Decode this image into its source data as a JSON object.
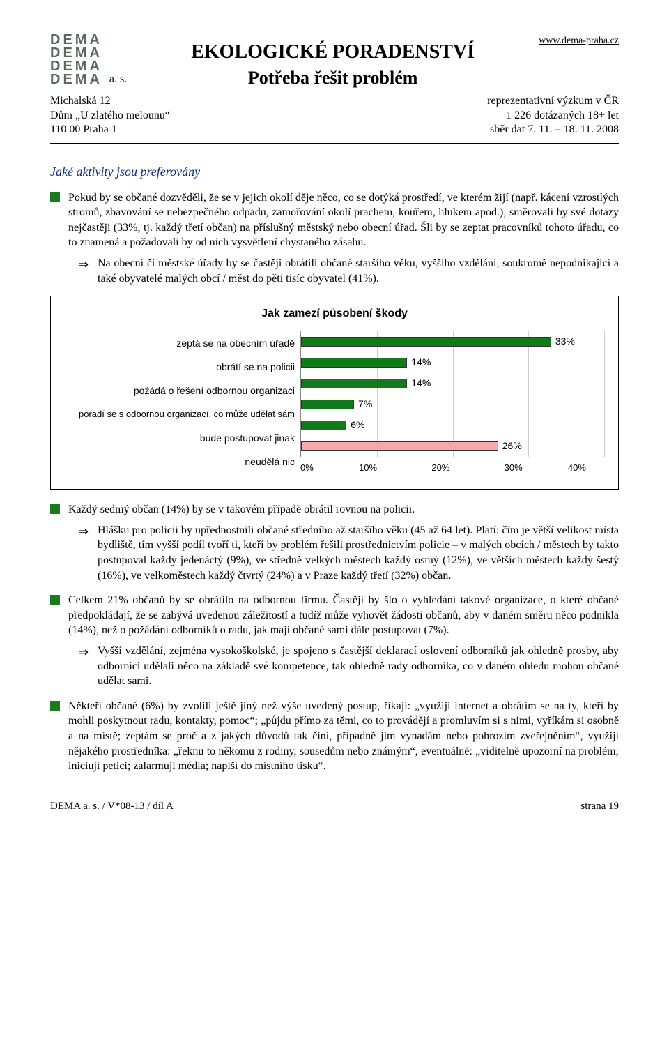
{
  "header": {
    "logo_word": "DEMA",
    "logo_repeat": 4,
    "logo_suffix": "a. s.",
    "title1": "EKOLOGICKÉ PORADENSTVÍ",
    "title2": "Potřeba řešit problém",
    "url": "www.dema-praha.cz",
    "addr_left": [
      "Michalská 12",
      "Dům „U zlatého melounu“",
      "110 00  Praha 1"
    ],
    "addr_right": [
      "reprezentativní výzkum v ČR",
      "1 226 dotázaných 18+ let",
      "sběr dat 7. 11. – 18. 11. 2008"
    ]
  },
  "section_heading": "Jaké aktivity jsou preferovány",
  "para1": "Pokud by se občané dozvěděli, že se v jejich okolí děje něco, co se dotýká prostředí, ve kterém žijí (např. kácení vzrostlých stromů, zbavování se nebezpečného odpadu, zamořování okolí prachem, kouřem, hlukem apod.), směrovali by své dotazy nejčastěji (33%, tj. každý třetí občan) na příslušný městský nebo obecní úřad. Šli by se zeptat pracovníků tohoto úřadu, co to znamená a požadovali by od nich vysvětlení chystaného zásahu.",
  "arrow1": "Na obecní či městské úřady by se častěji obrátili občané staršího věku, vyššího vzdělání, soukromě nepodnikající a také obyvatelé malých obcí / měst do pěti tisíc obyvatel (41%).",
  "chart": {
    "type": "bar-horizontal",
    "title": "Jak zamezí působení škody",
    "x_max": 40,
    "x_ticks": [
      0,
      10,
      20,
      30,
      40
    ],
    "x_tick_labels": [
      "0%",
      "10%",
      "20%",
      "30%",
      "40%"
    ],
    "label_fontsize": 14,
    "title_fontsize": 16,
    "bars": [
      {
        "label": "zeptá se na obecním úřadě",
        "value": 33,
        "value_label": "33%",
        "color": "#137a1a",
        "label_wrap": false
      },
      {
        "label": "obrátí se na policii",
        "value": 14,
        "value_label": "14%",
        "color": "#137a1a",
        "label_wrap": false
      },
      {
        "label": "požádá o řešení odbornou organizaci",
        "value": 14,
        "value_label": "14%",
        "color": "#137a1a",
        "label_wrap": false
      },
      {
        "label": "poradí se s odbornou organizací, co může udělat sám",
        "value": 7,
        "value_label": "7%",
        "color": "#137a1a",
        "label_wrap": true
      },
      {
        "label": "bude postupovat jinak",
        "value": 6,
        "value_label": "6%",
        "color": "#137a1a",
        "label_wrap": false
      },
      {
        "label": "neudělá nic",
        "value": 26,
        "value_label": "26%",
        "color": "#f6a8ad",
        "label_wrap": false
      }
    ],
    "bar_border": "#333333",
    "grid_color": "#cccccc",
    "background_color": "#ffffff"
  },
  "para2": "Každý sedmý občan (14%) by se v takovém případě obrátil rovnou na policii.",
  "arrow2": "Hlášku pro policii by upřednostnili občané středního až staršího věku (45 až 64 let). Platí: čím je větší velikost místa bydliště, tím vyšší podíl tvoří ti, kteří by problém řešili prostřednictvím policie – v malých obcích / městech by takto postupoval každý jedenáctý (9%), ve středně velkých městech každý osmý (12%), ve větších městech každý šestý (16%), ve velkoměstech každý čtvrtý (24%) a v Praze každý třetí (32%) občan.",
  "para3": "Celkem 21% občanů by se obrátilo na odbornou firmu. Častěji by šlo o vyhledání takové organizace, o které občané předpokládají, že se zabývá uvedenou záležitostí a tudíž může vyhovět žádosti občanů, aby v daném směru něco podnikla (14%), než o požádání odborníků o radu, jak mají občané sami dále postupovat (7%).",
  "arrow3": "Vyšší vzdělání, zejména vysokoškolské, je spojeno s častější deklarací oslovení odborníků jak ohledně prosby, aby odborníci udělali něco na základě své kompetence, tak ohledně rady odborníka, co v daném ohledu mohou občané udělat sami.",
  "para4": "Někteří občané (6%) by zvolili ještě jiný než výše uvedený postup, říkají: „využiji internet a obrátím se na ty, kteří by mohli poskytnout radu, kontakty, pomoc“; „půjdu přímo za těmi, co to provádějí a promluvím si s nimi, vyříkám si osobně a na místě; zeptám se proč a z jakých důvodů tak činí, případně jim vynadám nebo pohrozím zveřejněním“, využijí nějakého prostředníka: „řeknu to někomu z rodiny, sousedům nebo známým“, eventuálně: „viditelně upozorní na problém; iniciují petici; zalarmují média; napíší do místního tisku“.",
  "footer": {
    "left": "DEMA a. s. / V*08-13 / díl A",
    "right": "strana 19"
  }
}
